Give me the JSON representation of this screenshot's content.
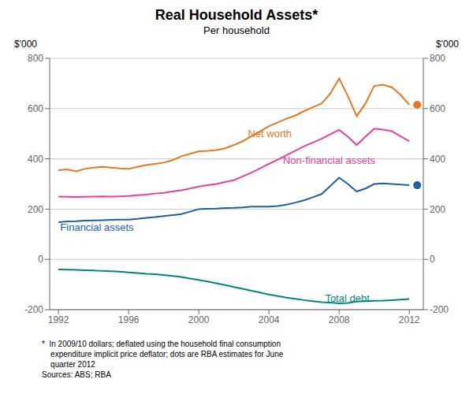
{
  "chart_data": {
    "type": "line",
    "title": "Real Household Assets*",
    "subtitle": "Per household",
    "ylabel": "$'000",
    "y2label": "$'000",
    "x": [
      1992,
      1992.5,
      1993,
      1993.5,
      1994,
      1994.5,
      1995,
      1995.5,
      1996,
      1996.5,
      1997,
      1997.5,
      1998,
      1998.5,
      1999,
      1999.5,
      2000,
      2000.5,
      2001,
      2001.5,
      2002,
      2002.5,
      2003,
      2003.5,
      2004,
      2004.5,
      2005,
      2005.5,
      2006,
      2006.5,
      2007,
      2007.5,
      2008,
      2008.5,
      2009,
      2009.5,
      2010,
      2010.5,
      2011,
      2011.5,
      2012
    ],
    "series": [
      {
        "name": "Net worth",
        "color": "#E87722",
        "values": [
          355,
          358,
          350,
          360,
          365,
          368,
          365,
          362,
          360,
          368,
          375,
          380,
          385,
          395,
          410,
          420,
          430,
          432,
          435,
          442,
          455,
          470,
          490,
          510,
          530,
          545,
          560,
          572,
          590,
          605,
          620,
          660,
          720,
          650,
          570,
          620,
          690,
          695,
          685,
          655,
          615
        ]
      },
      {
        "name": "Non-financial assets",
        "color": "#E8409A",
        "values": [
          250,
          249,
          248,
          249,
          250,
          251,
          250,
          251,
          252,
          255,
          258,
          262,
          265,
          270,
          275,
          282,
          290,
          295,
          300,
          308,
          315,
          330,
          345,
          362,
          380,
          397,
          415,
          432,
          450,
          465,
          480,
          498,
          515,
          488,
          455,
          488,
          520,
          516,
          510,
          490,
          470
        ]
      },
      {
        "name": "Financial assets",
        "color": "#1F5FA6",
        "values": [
          148,
          151,
          152,
          154,
          155,
          156,
          157,
          158,
          158,
          161,
          165,
          168,
          172,
          176,
          180,
          190,
          200,
          201,
          202,
          204,
          205,
          207,
          210,
          210,
          210,
          212,
          218,
          226,
          235,
          247,
          260,
          292,
          325,
          300,
          270,
          282,
          300,
          302,
          300,
          298,
          295
        ]
      },
      {
        "name": "Total debt",
        "color": "#00857C",
        "values": [
          -40,
          -41,
          -42,
          -43,
          -44,
          -46,
          -47,
          -49,
          -52,
          -54,
          -57,
          -59,
          -62,
          -66,
          -70,
          -76,
          -82,
          -88,
          -95,
          -102,
          -110,
          -117,
          -125,
          -132,
          -140,
          -146,
          -152,
          -157,
          -162,
          -166,
          -170,
          -172,
          -175,
          -173,
          -168,
          -166,
          -165,
          -164,
          -162,
          -160,
          -158
        ]
      }
    ],
    "dots": [
      {
        "x": 2012.45,
        "y": 615,
        "color": "#E87722"
      },
      {
        "x": 2012.45,
        "y": 295,
        "color": "#1F5FA6"
      }
    ],
    "annotations": [
      {
        "text": "Net worth",
        "x": 2002.8,
        "y": 502,
        "color": "#E87722"
      },
      {
        "text": "Non-financial assets",
        "x": 2004.8,
        "y": 393,
        "color": "#E8409A"
      },
      {
        "text": "Financial assets",
        "x": 1992.1,
        "y": 128,
        "color": "#1F5FA6"
      },
      {
        "text": "Total debt",
        "x": 2007.2,
        "y": -153,
        "color": "#00857C"
      }
    ],
    "footnote": [
      "*  In 2009/10 dollars; deflated using the household final consumption",
      "    expenditure implicit price deflator; dots are RBA estimates for June",
      "    quarter 2012",
      "Sources: ABS; RBA"
    ],
    "xlim": [
      1991.5,
      2012.8
    ],
    "xticks": [
      1992,
      1996,
      2000,
      2004,
      2008,
      2012
    ],
    "ylim": [
      -200,
      800
    ],
    "yticks": [
      -200,
      0,
      200,
      400,
      600,
      800
    ],
    "y2lim": [
      -200,
      800
    ],
    "y2ticks": [
      -200,
      0,
      200,
      400,
      600,
      800
    ],
    "grid": true
  }
}
